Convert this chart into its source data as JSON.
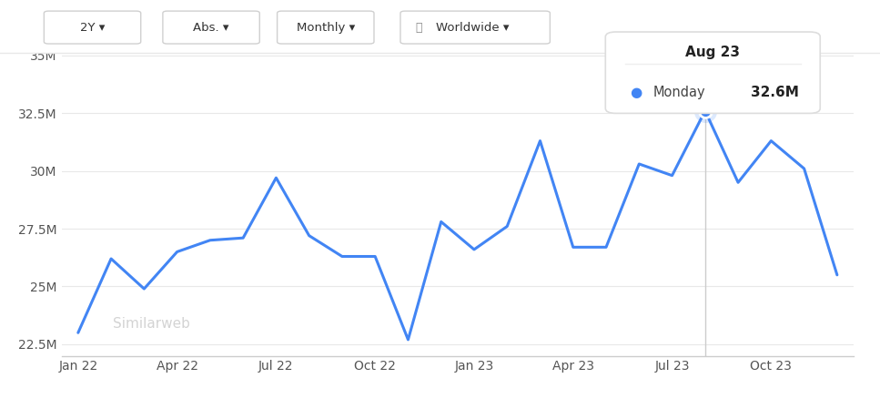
{
  "x_labels": [
    "Jan 22",
    "Apr 22",
    "Jul 22",
    "Oct 22",
    "Jan 23",
    "Apr 23",
    "Jul 23",
    "Oct 23"
  ],
  "months": [
    0,
    1,
    2,
    3,
    4,
    5,
    6,
    7,
    8,
    9,
    10,
    11,
    12,
    13,
    14,
    15,
    16,
    17,
    18,
    19,
    20,
    21,
    22,
    23
  ],
  "values": [
    23.0,
    26.2,
    24.9,
    26.5,
    27.0,
    27.1,
    29.7,
    27.2,
    26.3,
    26.3,
    22.7,
    27.8,
    26.6,
    27.6,
    31.3,
    26.7,
    26.7,
    30.3,
    29.8,
    32.6,
    29.5,
    31.3,
    30.1,
    25.5
  ],
  "line_color": "#4285f4",
  "line_width": 2.2,
  "y_ticks": [
    22.5,
    25.0,
    27.5,
    30.0,
    32.5,
    35.0
  ],
  "y_tick_labels": [
    "22.5M",
    "25M",
    "27.5M",
    "30M",
    "32.5M",
    "35M"
  ],
  "ylim": [
    22.0,
    35.8
  ],
  "tooltip_month_idx": 19,
  "tooltip_label": "Aug 23",
  "tooltip_site": "Monday",
  "tooltip_value": "32.6M",
  "highlight_color": "#4285f4",
  "bg_color": "#ffffff",
  "watermark_text": "Similarweb",
  "grid_color": "#e8e8e8",
  "toolbar_labels": [
    "2Y",
    "Abs.",
    "Monthly",
    "Worldwide"
  ],
  "toolbar_bg": "#f5f5f5",
  "toolbar_border": "#e0e0e0"
}
